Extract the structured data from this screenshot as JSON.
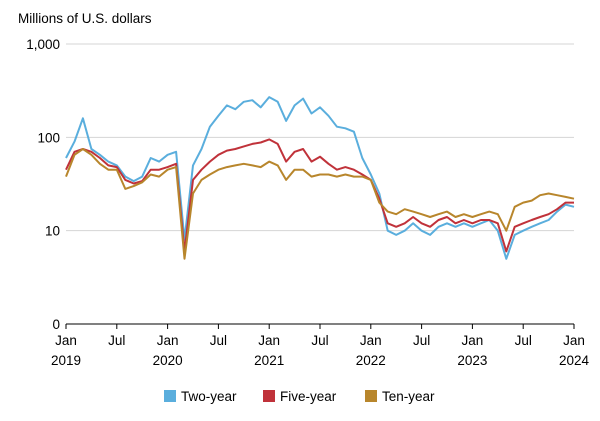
{
  "chart_data": {
    "type": "line",
    "title": "",
    "ylabel": "Millions of U.S. dollars",
    "xlabel": "",
    "yscale": "log",
    "ylim": [
      1,
      1000
    ],
    "y_ticks": [
      {
        "value": 1,
        "label": "0"
      },
      {
        "value": 10,
        "label": "10"
      },
      {
        "value": 100,
        "label": "100"
      },
      {
        "value": 1000,
        "label": "1,000"
      }
    ],
    "xlim": [
      "2019-01",
      "2024-01"
    ],
    "x_ticks": [
      {
        "value": "2019-01",
        "label": "Jan",
        "sublabel": "2019"
      },
      {
        "value": "2019-07",
        "label": "Jul",
        "sublabel": ""
      },
      {
        "value": "2020-01",
        "label": "Jan",
        "sublabel": "2020"
      },
      {
        "value": "2020-07",
        "label": "Jul",
        "sublabel": ""
      },
      {
        "value": "2021-01",
        "label": "Jan",
        "sublabel": "2021"
      },
      {
        "value": "2021-07",
        "label": "Jul",
        "sublabel": ""
      },
      {
        "value": "2022-01",
        "label": "Jan",
        "sublabel": "2022"
      },
      {
        "value": "2022-07",
        "label": "Jul",
        "sublabel": ""
      },
      {
        "value": "2023-01",
        "label": "Jan",
        "sublabel": "2023"
      },
      {
        "value": "2023-07",
        "label": "Jul",
        "sublabel": ""
      },
      {
        "value": "2024-01",
        "label": "Jan",
        "sublabel": "2024"
      }
    ],
    "grid": true,
    "legend_position": "bottom",
    "x": [
      "2019-01",
      "2019-02",
      "2019-03",
      "2019-04",
      "2019-05",
      "2019-06",
      "2019-07",
      "2019-08",
      "2019-09",
      "2019-10",
      "2019-11",
      "2019-12",
      "2020-01",
      "2020-02",
      "2020-03",
      "2020-04",
      "2020-05",
      "2020-06",
      "2020-07",
      "2020-08",
      "2020-09",
      "2020-10",
      "2020-11",
      "2020-12",
      "2021-01",
      "2021-02",
      "2021-03",
      "2021-04",
      "2021-05",
      "2021-06",
      "2021-07",
      "2021-08",
      "2021-09",
      "2021-10",
      "2021-11",
      "2021-12",
      "2022-01",
      "2022-02",
      "2022-03",
      "2022-04",
      "2022-05",
      "2022-06",
      "2022-07",
      "2022-08",
      "2022-09",
      "2022-10",
      "2022-11",
      "2022-12",
      "2023-01",
      "2023-02",
      "2023-03",
      "2023-04",
      "2023-05",
      "2023-06",
      "2023-07",
      "2023-08",
      "2023-09",
      "2023-10",
      "2023-11",
      "2023-12",
      "2024-01"
    ],
    "series": [
      {
        "name": "Two-year",
        "color": "#5aaedd",
        "values": [
          60,
          90,
          160,
          75,
          65,
          55,
          50,
          38,
          34,
          38,
          60,
          55,
          65,
          70,
          8,
          50,
          75,
          130,
          170,
          220,
          200,
          240,
          250,
          210,
          270,
          240,
          150,
          220,
          260,
          180,
          210,
          170,
          130,
          125,
          115,
          60,
          40,
          25,
          10,
          9,
          10,
          12,
          10,
          9,
          11,
          12,
          11,
          12,
          11,
          12,
          13,
          10,
          5,
          9,
          10,
          11,
          12,
          13,
          16,
          19,
          18
        ]
      },
      {
        "name": "Five-year",
        "color": "#c0323a",
        "values": [
          45,
          70,
          75,
          70,
          60,
          50,
          48,
          35,
          32,
          34,
          45,
          45,
          48,
          52,
          6,
          35,
          45,
          55,
          65,
          72,
          75,
          80,
          85,
          88,
          95,
          85,
          55,
          70,
          75,
          55,
          62,
          52,
          45,
          48,
          45,
          40,
          35,
          22,
          12,
          11,
          12,
          14,
          12,
          11,
          13,
          14,
          12,
          13,
          12,
          13,
          13,
          12,
          6,
          11,
          12,
          13,
          14,
          15,
          17,
          20,
          20
        ]
      },
      {
        "name": "Ten-year",
        "color": "#b8862c",
        "values": [
          38,
          65,
          75,
          65,
          52,
          45,
          45,
          28,
          30,
          33,
          40,
          38,
          45,
          48,
          5,
          25,
          35,
          40,
          45,
          48,
          50,
          52,
          50,
          48,
          55,
          50,
          35,
          45,
          45,
          38,
          40,
          40,
          38,
          40,
          38,
          38,
          35,
          20,
          16,
          15,
          17,
          16,
          15,
          14,
          15,
          16,
          14,
          15,
          14,
          15,
          16,
          15,
          10,
          18,
          20,
          21,
          24,
          25,
          24,
          23,
          22
        ]
      }
    ]
  }
}
